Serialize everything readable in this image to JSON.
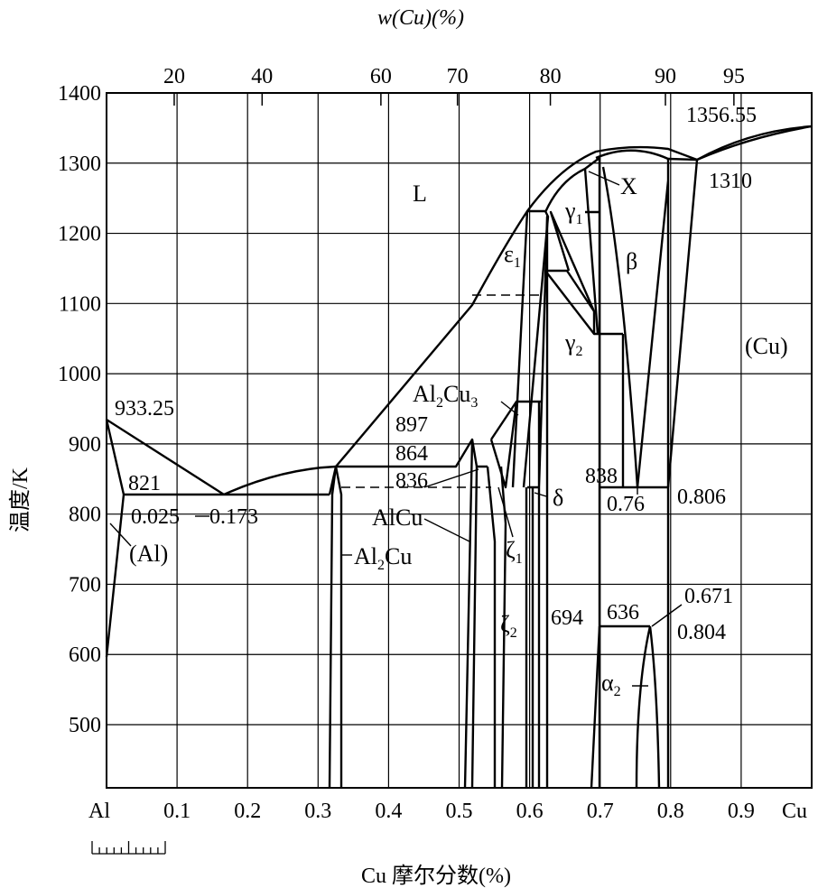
{
  "chart_data": {
    "type": "line",
    "title": "",
    "top_axis_label": "w(Cu)(%)",
    "xlabel": "Cu 摩尔分数(%)",
    "ylabel": "温度/K",
    "x_range": [
      0,
      1
    ],
    "ylim": [
      410,
      1400
    ],
    "x_ticks": [
      "0.1",
      "0.2",
      "0.3",
      "0.4",
      "0.5",
      "0.6",
      "0.7",
      "0.8",
      "0.9"
    ],
    "x_end_labels": {
      "left": "Al",
      "right": "Cu"
    },
    "top_ticks": [
      "20",
      "40",
      "60",
      "70",
      "80",
      "90",
      "95"
    ],
    "y_ticks": [
      "1400",
      "1300",
      "1200",
      "1100",
      "1000",
      "900",
      "800",
      "700",
      "600",
      "500"
    ],
    "grid": true,
    "temperature_labels": [
      "933.25",
      "821",
      "1356.55",
      "1310",
      "897",
      "864",
      "836",
      "838",
      "694",
      "636"
    ],
    "composition_labels": [
      "0.025",
      "0.173",
      "0.76",
      "0.806",
      "0.671",
      "0.804"
    ],
    "phase_labels": [
      "L",
      "(Al)",
      "(Cu)",
      "β",
      "δ",
      "X",
      "AlCu"
    ],
    "subscript_phase_labels": {
      "epsilon1": {
        "base": "ε",
        "sub": "1"
      },
      "gamma1": {
        "base": "γ",
        "sub": "1"
      },
      "gamma2": {
        "base": "γ",
        "sub": "2"
      },
      "zeta1": {
        "base": "ζ",
        "sub": "1"
      },
      "zeta2": {
        "base": "ζ",
        "sub": "2"
      },
      "alpha2": {
        "base": "α",
        "sub": "2"
      },
      "al2cu": {
        "a": "Al",
        "s": "2",
        "b": "Cu"
      },
      "al2cu3": {
        "a": "Al",
        "s": "2",
        "b": "Cu",
        "s2": "3"
      }
    }
  }
}
